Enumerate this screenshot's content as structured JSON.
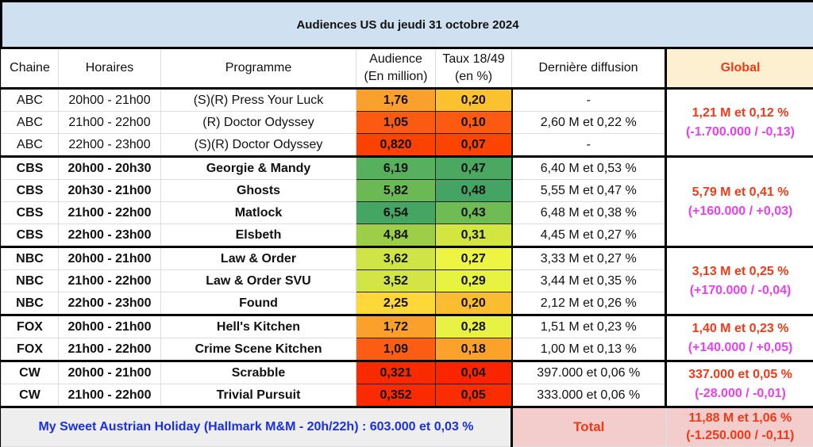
{
  "title": "Audiences US du jeudi 31 octobre 2024",
  "headers": {
    "chaine": "Chaine",
    "horaires": "Horaires",
    "programme": "Programme",
    "audience1": "Audience",
    "audience2": "(En million)",
    "taux1": "Taux 18/49",
    "taux2": "(en %)",
    "derniere": "Dernière diffusion",
    "global": "Global"
  },
  "groups": [
    {
      "bold": false,
      "global": "1,21 M et 0,12 %",
      "delta": "(-1.700.000 / -0,13)",
      "rows": [
        {
          "chaine": "ABC",
          "horaire": "20h00 - 21h00",
          "programme": "(S)(R) Press Your Luck",
          "audience": "1,76",
          "taux": "0,20",
          "derniere": "-",
          "ac": "#f9a12c",
          "tc": "#fbc12f"
        },
        {
          "chaine": "ABC",
          "horaire": "21h00 - 22h00",
          "programme": "(R) Doctor Odyssey",
          "audience": "1,05",
          "taux": "0,10",
          "derniere": "2,60 M et 0,22 %",
          "ac": "#fb5b10",
          "tc": "#fb5a10"
        },
        {
          "chaine": "ABC",
          "horaire": "22h00 - 23h00",
          "programme": "(S)(R) Doctor Odyssey",
          "audience": "0,820",
          "taux": "0,07",
          "derniere": "-",
          "ac": "#fb4200",
          "tc": "#fb4400"
        }
      ]
    },
    {
      "bold": true,
      "global": "5,79 M et 0,41 %",
      "delta": "(+160.000 / +0,03)",
      "rows": [
        {
          "chaine": "CBS",
          "horaire": "20h00 - 20h30",
          "programme": "Georgie & Mandy",
          "audience": "6,19",
          "taux": "0,47",
          "derniere": "6,40 M et 0,53 %",
          "ac": "#57b05d",
          "tc": "#4aa860"
        },
        {
          "chaine": "CBS",
          "horaire": "20h30 - 21h00",
          "programme": "Ghosts",
          "audience": "5,82",
          "taux": "0,48",
          "derniere": "5,55 M et 0,47 %",
          "ac": "#6bb955",
          "tc": "#43a463"
        },
        {
          "chaine": "CBS",
          "horaire": "21h00 - 22h00",
          "programme": "Matlock",
          "audience": "6,54",
          "taux": "0,43",
          "derniere": "6,48 M et 0,38 %",
          "ac": "#45a562",
          "tc": "#6fbb54"
        },
        {
          "chaine": "CBS",
          "horaire": "22h00 - 23h00",
          "programme": "Elsbeth",
          "audience": "4,84",
          "taux": "0,31",
          "derniere": "4,45 M et 0,27 %",
          "ac": "#9cce47",
          "tc": "#d3e640"
        }
      ]
    },
    {
      "bold": true,
      "global": "3,13 M et 0,25 %",
      "delta": "(+170.000 / -0,04)",
      "rows": [
        {
          "chaine": "NBC",
          "horaire": "20h00 - 21h00",
          "programme": "Law & Order",
          "audience": "3,62",
          "taux": "0,27",
          "derniere": "3,33 M et 0,27 %",
          "ac": "#cfe545",
          "tc": "#eef442"
        },
        {
          "chaine": "NBC",
          "horaire": "21h00 - 22h00",
          "programme": "Law & Order SVU",
          "audience": "3,52",
          "taux": "0,29",
          "derniere": "3,44 M et 0,35 %",
          "ac": "#d2e544",
          "tc": "#e8f241"
        },
        {
          "chaine": "NBC",
          "horaire": "22h00 - 23h00",
          "programme": "Found",
          "audience": "2,25",
          "taux": "0,20",
          "derniere": "2,12 M et 0,26 %",
          "ac": "#fed838",
          "tc": "#fbbd30"
        }
      ]
    },
    {
      "bold": true,
      "global": "1,40 M et 0,23 %",
      "delta": "(+140.000 / +0,05)",
      "rows": [
        {
          "chaine": "FOX",
          "horaire": "20h00 - 21h00",
          "programme": "Hell's Kitchen",
          "audience": "1,72",
          "taux": "0,28",
          "derniere": "1,51 M et 0,23 %",
          "ac": "#fba02b",
          "tc": "#e8f242"
        },
        {
          "chaine": "FOX",
          "horaire": "21h00 - 22h00",
          "programme": "Crime Scene Kitchen",
          "audience": "1,09",
          "taux": "0,18",
          "derniere": "1,00 M et 0,13 %",
          "ac": "#fb5e12",
          "tc": "#fba22b"
        }
      ]
    },
    {
      "bold": true,
      "global": "337.000 et 0,05 %",
      "delta": "(-28.000 / -0,01)",
      "rows": [
        {
          "chaine": "CW",
          "horaire": "20h00 - 21h00",
          "programme": "Scrabble",
          "audience": "0,321",
          "taux": "0,04",
          "derniere": "397.000 et 0,06 %",
          "ac": "#fa2a00",
          "tc": "#fa2400"
        },
        {
          "chaine": "CW",
          "horaire": "21h00 - 22h00",
          "programme": "Trivial Pursuit",
          "audience": "0,352",
          "taux": "0,05",
          "derniere": "333.000 et 0,06 %",
          "ac": "#fa2b00",
          "tc": "#fa2c00"
        }
      ]
    }
  ],
  "footer": {
    "hallmark": "My Sweet Austrian Holiday (Hallmark M&M - 20h/22h) : 603.000 et 0,03 %",
    "total_label": "Total",
    "total": "11,88 M et 1,06 %",
    "total_delta": "(-1.250.000 / -0,11)"
  }
}
